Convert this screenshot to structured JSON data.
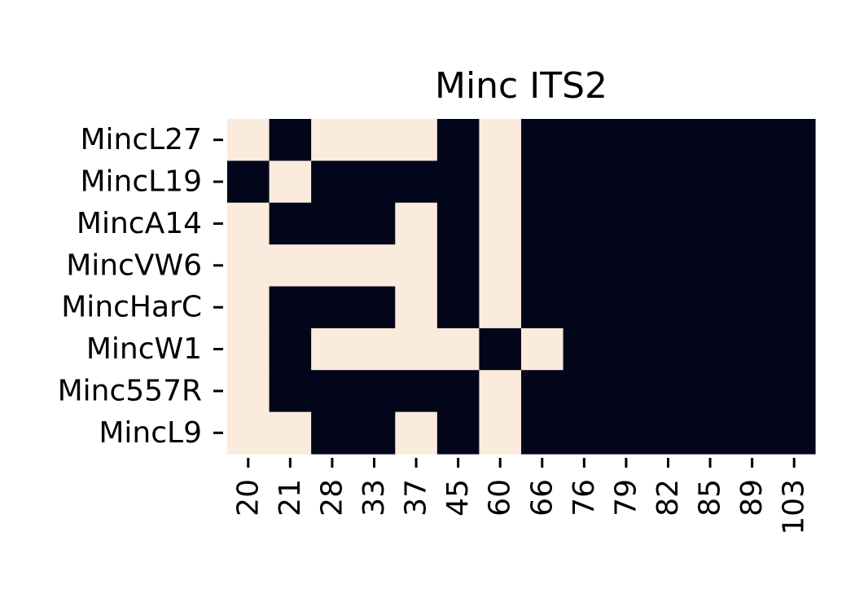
{
  "chart_data": {
    "type": "heatmap",
    "title": "Minc ITS2",
    "xlabel": "",
    "ylabel": "",
    "x_categories": [
      "20",
      "21",
      "28",
      "33",
      "37",
      "45",
      "60",
      "66",
      "76",
      "79",
      "82",
      "85",
      "89",
      "103"
    ],
    "y_categories": [
      "MincL27",
      "MincL19",
      "MincA14",
      "MincVW6",
      "MincHarC",
      "MincW1",
      "Minc557R",
      "MincL9"
    ],
    "values": [
      [
        1,
        0,
        1,
        1,
        1,
        0,
        1,
        0,
        0,
        0,
        0,
        0,
        0,
        0
      ],
      [
        0,
        1,
        0,
        0,
        0,
        0,
        1,
        0,
        0,
        0,
        0,
        0,
        0,
        0
      ],
      [
        1,
        0,
        0,
        0,
        1,
        0,
        1,
        0,
        0,
        0,
        0,
        0,
        0,
        0
      ],
      [
        1,
        1,
        1,
        1,
        1,
        0,
        1,
        0,
        0,
        0,
        0,
        0,
        0,
        0
      ],
      [
        1,
        0,
        0,
        0,
        1,
        0,
        1,
        0,
        0,
        0,
        0,
        0,
        0,
        0
      ],
      [
        1,
        0,
        1,
        1,
        1,
        1,
        0,
        1,
        0,
        0,
        0,
        0,
        0,
        0
      ],
      [
        1,
        0,
        0,
        0,
        0,
        0,
        1,
        0,
        0,
        0,
        0,
        0,
        0,
        0
      ],
      [
        1,
        1,
        0,
        0,
        1,
        0,
        1,
        0,
        0,
        0,
        0,
        0,
        0,
        0
      ]
    ],
    "colors": {
      "value_1": "#faebdd",
      "value_0": "#03051a"
    },
    "colorbar": false,
    "grid": false
  }
}
